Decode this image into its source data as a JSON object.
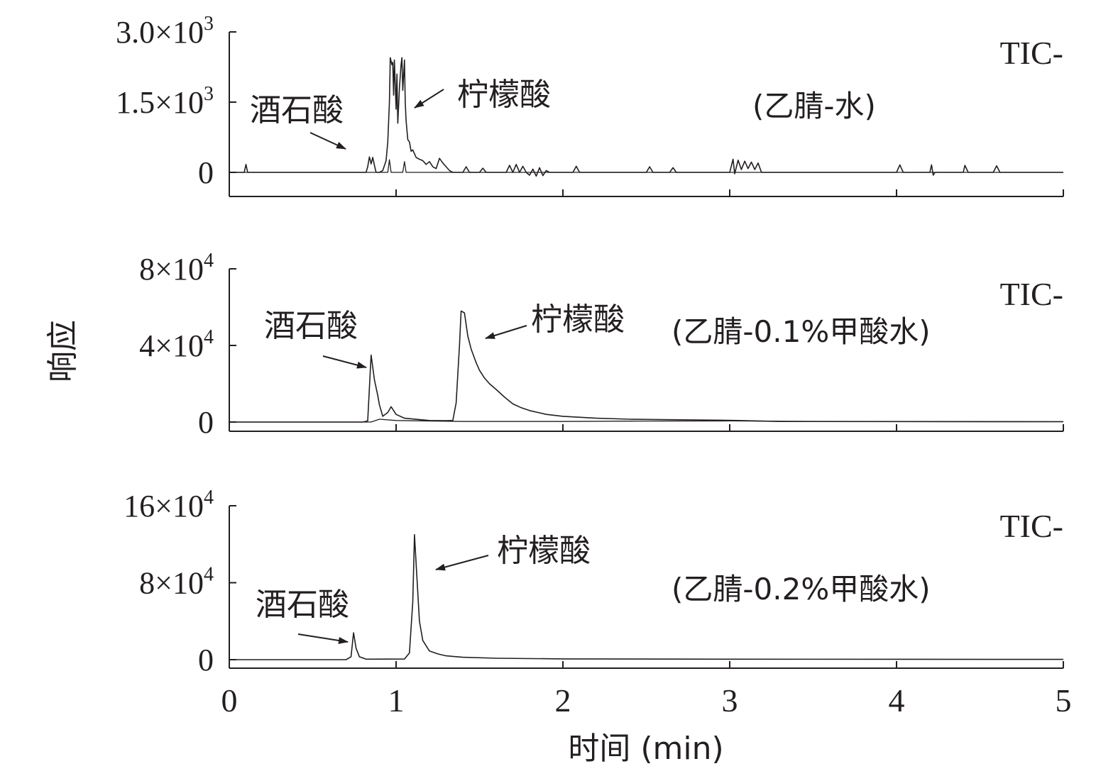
{
  "chart_data": {
    "type": "line",
    "xlabel": "时间 (min)",
    "ylabel": "响应",
    "xlim": [
      0,
      5
    ],
    "xticks": [
      "0",
      "1",
      "2",
      "3",
      "4",
      "5"
    ],
    "panels": [
      {
        "mode": "TIC-",
        "condition": "(乙腈-水)",
        "ylim": [
          0,
          3000
        ],
        "yticks": [
          {
            "base": "0",
            "exp": "",
            "value": 0
          },
          {
            "base": "1.5×10",
            "exp": "3",
            "value": 1500
          },
          {
            "base": "3.0×10",
            "exp": "3",
            "value": 3000
          }
        ],
        "series": [
          {
            "values": [
              [
                0,
                0
              ],
              [
                0.09,
                0
              ],
              [
                0.1,
                170
              ],
              [
                0.11,
                0
              ],
              [
                0.82,
                0
              ],
              [
                0.83,
                120
              ],
              [
                0.84,
                330
              ],
              [
                0.85,
                180
              ],
              [
                0.86,
                320
              ],
              [
                0.87,
                150
              ],
              [
                0.88,
                0
              ],
              [
                0.9,
                0
              ],
              [
                0.92,
                40
              ],
              [
                0.94,
                250
              ],
              [
                0.95,
                650
              ],
              [
                0.96,
                1500
              ],
              [
                0.965,
                2450
              ],
              [
                0.975,
                2300
              ],
              [
                0.98,
                2350
              ],
              [
                0.985,
                1650
              ],
              [
                0.99,
                2400
              ],
              [
                1.0,
                1350
              ],
              [
                1.005,
                2100
              ],
              [
                1.01,
                1050
              ],
              [
                1.02,
                1800
              ],
              [
                1.03,
                2300
              ],
              [
                1.035,
                2450
              ],
              [
                1.04,
                1750
              ],
              [
                1.05,
                2400
              ],
              [
                1.055,
                1500
              ],
              [
                1.06,
                1100
              ],
              [
                1.07,
                700
              ],
              [
                1.08,
                650
              ],
              [
                1.09,
                450
              ],
              [
                1.1,
                480
              ],
              [
                1.12,
                320
              ],
              [
                1.14,
                280
              ],
              [
                1.16,
                250
              ],
              [
                1.18,
                170
              ],
              [
                1.2,
                230
              ],
              [
                1.22,
                120
              ],
              [
                1.24,
                80
              ],
              [
                1.26,
                300
              ],
              [
                1.28,
                200
              ],
              [
                1.3,
                120
              ],
              [
                1.32,
                40
              ],
              [
                1.34,
                0
              ],
              [
                1.4,
                0
              ],
              [
                1.42,
                120
              ],
              [
                1.44,
                0
              ],
              [
                1.5,
                0
              ],
              [
                1.52,
                90
              ],
              [
                1.54,
                0
              ],
              [
                1.66,
                0
              ],
              [
                1.68,
                150
              ],
              [
                1.7,
                0
              ],
              [
                1.72,
                170
              ],
              [
                1.74,
                0
              ],
              [
                1.76,
                130
              ],
              [
                1.78,
                0
              ],
              [
                1.8,
                -60
              ],
              [
                1.82,
                70
              ],
              [
                1.84,
                -80
              ],
              [
                1.86,
                100
              ],
              [
                1.88,
                -70
              ],
              [
                1.9,
                40
              ],
              [
                1.92,
                0
              ],
              [
                2.06,
                0
              ],
              [
                2.08,
                130
              ],
              [
                2.1,
                0
              ],
              [
                2.5,
                0
              ],
              [
                2.52,
                120
              ],
              [
                2.54,
                0
              ],
              [
                2.64,
                0
              ],
              [
                2.66,
                100
              ],
              [
                2.68,
                0
              ],
              [
                3.0,
                0
              ],
              [
                3.02,
                280
              ],
              [
                3.03,
                -30
              ],
              [
                3.05,
                260
              ],
              [
                3.07,
                60
              ],
              [
                3.09,
                240
              ],
              [
                3.11,
                80
              ],
              [
                3.13,
                220
              ],
              [
                3.15,
                60
              ],
              [
                3.17,
                200
              ],
              [
                3.19,
                0
              ],
              [
                4.0,
                0
              ],
              [
                4.02,
                160
              ],
              [
                4.04,
                0
              ],
              [
                4.2,
                0
              ],
              [
                4.21,
                160
              ],
              [
                4.22,
                -60
              ],
              [
                4.23,
                0
              ],
              [
                4.4,
                0
              ],
              [
                4.41,
                150
              ],
              [
                4.43,
                0
              ],
              [
                4.58,
                0
              ],
              [
                4.6,
                140
              ],
              [
                4.62,
                0
              ],
              [
                5,
                0
              ]
            ]
          },
          {
            "values": [
              [
                0,
                0
              ],
              [
                0.9,
                0
              ],
              [
                0.91,
                0
              ],
              [
                0.95,
                0
              ],
              [
                0.96,
                270
              ],
              [
                0.97,
                0
              ],
              [
                1.04,
                0
              ],
              [
                1.05,
                230
              ],
              [
                1.06,
                0
              ],
              [
                5,
                0
              ]
            ]
          }
        ]
      },
      {
        "mode": "TIC-",
        "condition": "(乙腈-0.1%甲酸水)",
        "ylim": [
          0,
          80000
        ],
        "yticks": [
          {
            "base": "0",
            "exp": "",
            "value": 0
          },
          {
            "base": "4×10",
            "exp": "4",
            "value": 40000
          },
          {
            "base": "8×10",
            "exp": "4",
            "value": 80000
          }
        ],
        "series": [
          {
            "values": [
              [
                0,
                0
              ],
              [
                0.8,
                0
              ],
              [
                0.83,
                600
              ],
              [
                0.85,
                35000
              ],
              [
                0.87,
                22000
              ],
              [
                0.89,
                14000
              ],
              [
                0.9,
                9000
              ],
              [
                0.92,
                3000
              ],
              [
                0.95,
                5000
              ],
              [
                0.97,
                8000
              ],
              [
                1.0,
                4000
              ],
              [
                1.05,
                2000
              ],
              [
                1.2,
                800
              ],
              [
                1.3,
                700
              ],
              [
                1.34,
                800
              ],
              [
                1.36,
                10000
              ],
              [
                1.38,
                40000
              ],
              [
                1.39,
                58000
              ],
              [
                1.41,
                57000
              ],
              [
                1.43,
                45000
              ],
              [
                1.45,
                38000
              ],
              [
                1.48,
                31000
              ],
              [
                1.5,
                27000
              ],
              [
                1.53,
                23000
              ],
              [
                1.56,
                20000
              ],
              [
                1.6,
                17000
              ],
              [
                1.65,
                13000
              ],
              [
                1.7,
                9500
              ],
              [
                1.75,
                7500
              ],
              [
                1.8,
                6000
              ],
              [
                1.85,
                5000
              ],
              [
                1.9,
                4000
              ],
              [
                2.0,
                3000
              ],
              [
                2.2,
                2000
              ],
              [
                2.4,
                1500
              ],
              [
                2.7,
                1200
              ],
              [
                2.9,
                1000
              ],
              [
                3.05,
                800
              ],
              [
                3.3,
                300
              ],
              [
                5,
                200
              ]
            ]
          },
          {
            "values": [
              [
                0,
                0
              ],
              [
                0.85,
                0
              ],
              [
                0.9,
                1500
              ],
              [
                1.0,
                800
              ],
              [
                1.4,
                300
              ],
              [
                2.0,
                300
              ],
              [
                2.5,
                500
              ],
              [
                3.0,
                600
              ],
              [
                3.5,
                300
              ],
              [
                5,
                200
              ]
            ]
          }
        ]
      },
      {
        "mode": "TIC-",
        "condition": "(乙腈-0.2%甲酸水)",
        "ylim": [
          0,
          160000
        ],
        "yticks": [
          {
            "base": "0",
            "exp": "",
            "value": 0
          },
          {
            "base": "8×10",
            "exp": "4",
            "value": 80000
          },
          {
            "base": "16×10",
            "exp": "4",
            "value": 160000
          }
        ],
        "series": [
          {
            "values": [
              [
                0,
                0
              ],
              [
                0.7,
                0
              ],
              [
                0.73,
                3000
              ],
              [
                0.745,
                28000
              ],
              [
                0.76,
                12000
              ],
              [
                0.78,
                3000
              ],
              [
                0.82,
                500
              ],
              [
                1.05,
                700
              ],
              [
                1.08,
                7000
              ],
              [
                1.1,
                60000
              ],
              [
                1.11,
                130000
              ],
              [
                1.12,
                100000
              ],
              [
                1.14,
                40000
              ],
              [
                1.16,
                20000
              ],
              [
                1.2,
                9000
              ],
              [
                1.25,
                6000
              ],
              [
                1.3,
                4000
              ],
              [
                1.4,
                2500
              ],
              [
                1.6,
                1500
              ],
              [
                2.0,
                800
              ],
              [
                3.0,
                500
              ],
              [
                5,
                300
              ]
            ]
          }
        ]
      }
    ],
    "annotations": [
      {
        "panel": 0,
        "text": "酒石酸"
      },
      {
        "panel": 0,
        "text": "柠檬酸"
      },
      {
        "panel": 1,
        "text": "酒石酸"
      },
      {
        "panel": 1,
        "text": "柠檬酸"
      },
      {
        "panel": 2,
        "text": "酒石酸"
      },
      {
        "panel": 2,
        "text": "柠檬酸"
      }
    ]
  }
}
